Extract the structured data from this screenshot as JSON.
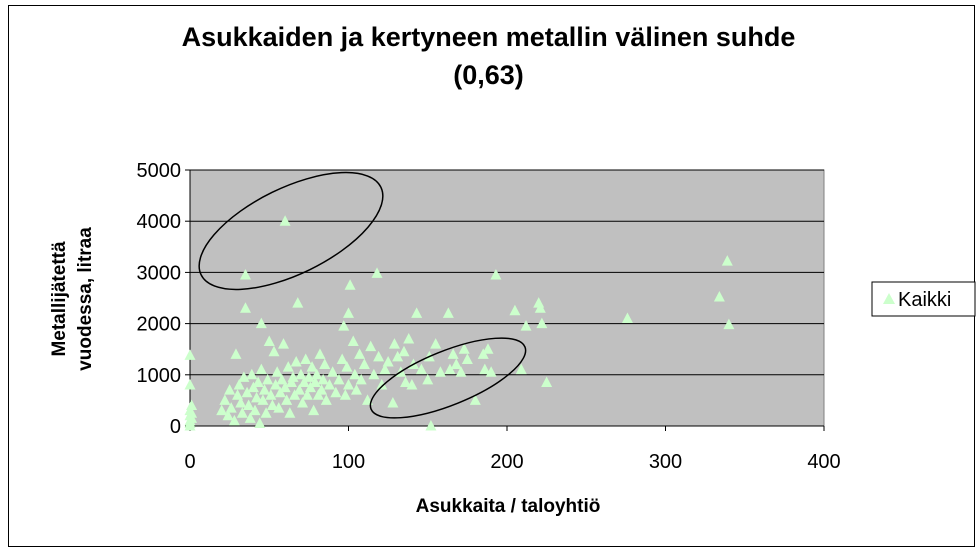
{
  "chart_data": {
    "type": "scatter",
    "title": "Asukkaiden ja kertyneen metallin välinen suhde",
    "subtitle": "(0,63)",
    "xlabel": "Asukkaita / taloyhtiö",
    "ylabel_lines": [
      "Metallijätettä",
      "vuodessa, litraa"
    ],
    "xlim": [
      0,
      400
    ],
    "ylim": [
      0,
      5000
    ],
    "xticks": [
      "0",
      "100",
      "200",
      "300",
      "400"
    ],
    "yticks": [
      "0",
      "1000",
      "2000",
      "3000",
      "4000",
      "5000"
    ],
    "grid": true,
    "legend_position": "right",
    "colors": {
      "plot_bg": "#c0c0c0",
      "marker": "#ccffcc",
      "grid": "#000000"
    },
    "series": [
      {
        "name": "Kaikki",
        "marker": "triangle",
        "points": [
          [
            0,
            1380
          ],
          [
            0,
            800
          ],
          [
            0,
            300
          ],
          [
            0,
            200
          ],
          [
            0,
            100
          ],
          [
            0,
            50
          ],
          [
            0,
            0
          ],
          [
            1,
            150
          ],
          [
            1,
            250
          ],
          [
            1,
            400
          ],
          [
            20,
            300
          ],
          [
            22,
            500
          ],
          [
            24,
            200
          ],
          [
            25,
            700
          ],
          [
            26,
            350
          ],
          [
            28,
            100
          ],
          [
            29,
            1400
          ],
          [
            30,
            600
          ],
          [
            31,
            800
          ],
          [
            32,
            450
          ],
          [
            33,
            250
          ],
          [
            34,
            950
          ],
          [
            35,
            2300
          ],
          [
            35,
            2950
          ],
          [
            36,
            650
          ],
          [
            37,
            400
          ],
          [
            38,
            150
          ],
          [
            39,
            1000
          ],
          [
            40,
            750
          ],
          [
            41,
            300
          ],
          [
            42,
            550
          ],
          [
            43,
            850
          ],
          [
            44,
            50
          ],
          [
            45,
            2000
          ],
          [
            45,
            1100
          ],
          [
            46,
            500
          ],
          [
            47,
            700
          ],
          [
            48,
            250
          ],
          [
            49,
            900
          ],
          [
            50,
            1650
          ],
          [
            51,
            600
          ],
          [
            52,
            400
          ],
          [
            53,
            1450
          ],
          [
            54,
            800
          ],
          [
            55,
            1050
          ],
          [
            56,
            350
          ],
          [
            57,
            650
          ],
          [
            58,
            900
          ],
          [
            59,
            1600
          ],
          [
            60,
            750
          ],
          [
            60,
            4000
          ],
          [
            61,
            500
          ],
          [
            62,
            1150
          ],
          [
            63,
            250
          ],
          [
            64,
            850
          ],
          [
            65,
            950
          ],
          [
            66,
            600
          ],
          [
            67,
            1250
          ],
          [
            68,
            2400
          ],
          [
            69,
            700
          ],
          [
            70,
            1000
          ],
          [
            71,
            450
          ],
          [
            72,
            850
          ],
          [
            73,
            1300
          ],
          [
            74,
            600
          ],
          [
            75,
            950
          ],
          [
            76,
            750
          ],
          [
            77,
            1150
          ],
          [
            78,
            300
          ],
          [
            79,
            850
          ],
          [
            80,
            1000
          ],
          [
            81,
            600
          ],
          [
            82,
            1400
          ],
          [
            83,
            700
          ],
          [
            84,
            900
          ],
          [
            85,
            1200
          ],
          [
            86,
            500
          ],
          [
            88,
            800
          ],
          [
            90,
            1050
          ],
          [
            92,
            650
          ],
          [
            94,
            900
          ],
          [
            96,
            1300
          ],
          [
            97,
            1950
          ],
          [
            98,
            600
          ],
          [
            99,
            1150
          ],
          [
            100,
            2200
          ],
          [
            100,
            800
          ],
          [
            101,
            2750
          ],
          [
            103,
            1650
          ],
          [
            104,
            1000
          ],
          [
            105,
            700
          ],
          [
            107,
            1400
          ],
          [
            108,
            900
          ],
          [
            110,
            1200
          ],
          [
            112,
            500
          ],
          [
            114,
            1550
          ],
          [
            116,
            1000
          ],
          [
            118,
            2980
          ],
          [
            119,
            1350
          ],
          [
            121,
            800
          ],
          [
            123,
            1100
          ],
          [
            125,
            1250
          ],
          [
            128,
            450
          ],
          [
            129,
            1600
          ],
          [
            131,
            1350
          ],
          [
            133,
            1050
          ],
          [
            135,
            1450
          ],
          [
            136,
            850
          ],
          [
            138,
            1700
          ],
          [
            140,
            800
          ],
          [
            141,
            1200
          ],
          [
            143,
            2200
          ],
          [
            146,
            1100
          ],
          [
            150,
            900
          ],
          [
            151,
            1350
          ],
          [
            152,
            0
          ],
          [
            155,
            1600
          ],
          [
            158,
            1050
          ],
          [
            163,
            2200
          ],
          [
            164,
            1100
          ],
          [
            166,
            1400
          ],
          [
            168,
            1200
          ],
          [
            171,
            1050
          ],
          [
            173,
            1500
          ],
          [
            175,
            1300
          ],
          [
            180,
            500
          ],
          [
            185,
            1400
          ],
          [
            186,
            1100
          ],
          [
            188,
            1500
          ],
          [
            190,
            1050
          ],
          [
            193,
            2950
          ],
          [
            205,
            2250
          ],
          [
            209,
            1100
          ],
          [
            212,
            1950
          ],
          [
            220,
            2400
          ],
          [
            221,
            2300
          ],
          [
            222,
            2000
          ],
          [
            225,
            850
          ],
          [
            276,
            2100
          ],
          [
            334,
            2520
          ],
          [
            339,
            3220
          ],
          [
            340,
            1980
          ]
        ]
      }
    ]
  }
}
